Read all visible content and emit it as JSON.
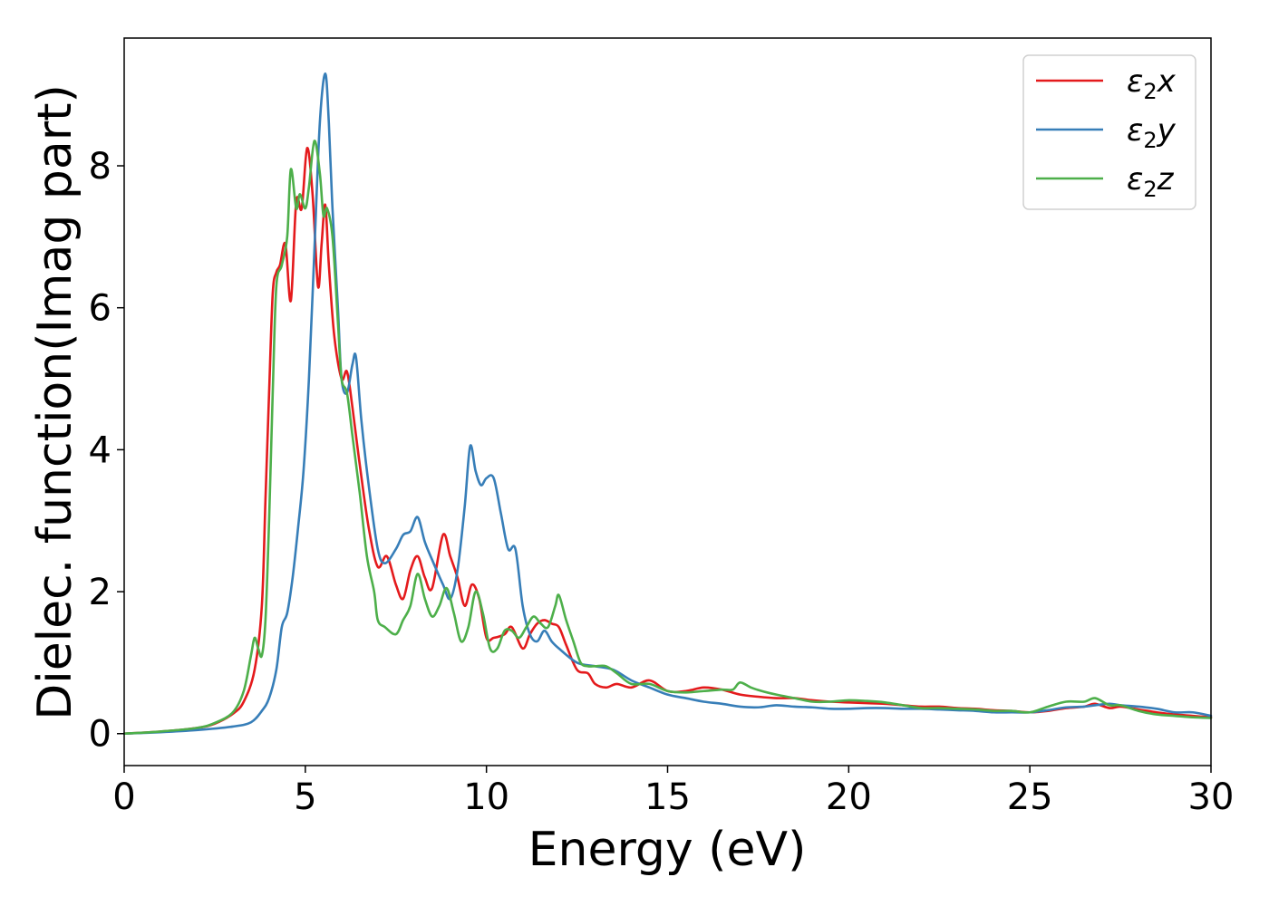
{
  "chart_data": {
    "type": "line",
    "title": "",
    "xlabel": "Energy (eV)",
    "ylabel": "Dielec. function(Imag part)",
    "xlim": [
      0,
      30
    ],
    "ylim": [
      -0.45,
      9.8
    ],
    "xticks": [
      0,
      5,
      10,
      15,
      20,
      25,
      30
    ],
    "yticks": [
      0,
      2,
      4,
      6,
      8
    ],
    "grid": false,
    "legend_position": "top-right",
    "series": [
      {
        "name": "ε2x",
        "legend": {
          "base": "ε",
          "sub": "2",
          "axis": "x"
        },
        "color": "#e41a1c",
        "x": [
          0,
          1,
          2,
          2.5,
          3,
          3.3,
          3.6,
          3.8,
          3.9,
          4.0,
          4.1,
          4.2,
          4.3,
          4.45,
          4.6,
          4.75,
          4.9,
          5.05,
          5.2,
          5.35,
          5.45,
          5.55,
          5.65,
          5.8,
          6.0,
          6.15,
          6.3,
          6.5,
          6.75,
          7.0,
          7.25,
          7.5,
          7.7,
          7.9,
          8.1,
          8.3,
          8.5,
          8.8,
          9.0,
          9.2,
          9.4,
          9.6,
          9.8,
          10.0,
          10.2,
          10.5,
          10.7,
          11.0,
          11.2,
          11.4,
          11.6,
          11.8,
          12.0,
          12.2,
          12.5,
          12.8,
          13.0,
          13.3,
          13.6,
          14.0,
          14.5,
          15.0,
          15.5,
          16.0,
          16.5,
          17.0,
          17.5,
          18.0,
          18.5,
          19.0,
          19.5,
          20.0,
          20.5,
          21.0,
          21.5,
          22.0,
          22.5,
          23.0,
          23.5,
          24.0,
          24.5,
          25.0,
          25.5,
          26.0,
          26.5,
          26.8,
          27.2,
          27.5,
          28.0,
          28.5,
          29.0,
          29.5,
          30.0
        ],
        "y": [
          0,
          0.03,
          0.08,
          0.14,
          0.28,
          0.45,
          0.9,
          1.8,
          3.3,
          4.8,
          6.2,
          6.5,
          6.6,
          6.9,
          6.1,
          7.5,
          7.4,
          8.25,
          7.6,
          6.3,
          6.9,
          7.45,
          6.6,
          5.6,
          5.0,
          5.1,
          4.6,
          3.8,
          2.9,
          2.35,
          2.5,
          2.1,
          1.9,
          2.3,
          2.5,
          2.2,
          2.05,
          2.8,
          2.5,
          2.2,
          1.8,
          2.1,
          1.9,
          1.35,
          1.35,
          1.4,
          1.5,
          1.2,
          1.4,
          1.55,
          1.6,
          1.55,
          1.5,
          1.25,
          0.9,
          0.85,
          0.7,
          0.65,
          0.7,
          0.65,
          0.75,
          0.6,
          0.6,
          0.65,
          0.62,
          0.55,
          0.52,
          0.5,
          0.5,
          0.47,
          0.45,
          0.44,
          0.43,
          0.42,
          0.4,
          0.38,
          0.38,
          0.36,
          0.35,
          0.33,
          0.32,
          0.3,
          0.32,
          0.36,
          0.38,
          0.42,
          0.36,
          0.38,
          0.34,
          0.3,
          0.27,
          0.25,
          0.23
        ]
      },
      {
        "name": "ε2y",
        "legend": {
          "base": "ε",
          "sub": "2",
          "axis": "y"
        },
        "color": "#377eb8",
        "x": [
          0,
          1,
          2,
          3,
          3.5,
          3.8,
          4.0,
          4.2,
          4.35,
          4.5,
          4.65,
          4.8,
          4.95,
          5.1,
          5.25,
          5.4,
          5.55,
          5.65,
          5.75,
          5.9,
          6.0,
          6.15,
          6.3,
          6.4,
          6.55,
          6.75,
          7.0,
          7.2,
          7.5,
          7.7,
          7.9,
          8.1,
          8.3,
          8.5,
          8.8,
          9.0,
          9.2,
          9.4,
          9.55,
          9.7,
          9.85,
          10.0,
          10.2,
          10.4,
          10.6,
          10.8,
          11.0,
          11.2,
          11.4,
          11.6,
          11.8,
          12.0,
          12.5,
          13.0,
          13.5,
          14.0,
          14.5,
          15.0,
          15.5,
          16.0,
          16.5,
          17.0,
          17.5,
          18.0,
          18.5,
          19.0,
          19.5,
          20.0,
          20.5,
          21.0,
          21.5,
          22.0,
          22.5,
          23.0,
          23.5,
          24.0,
          24.5,
          25.0,
          25.5,
          26.0,
          26.5,
          26.8,
          27.2,
          27.5,
          28.0,
          28.5,
          29.0,
          29.5,
          30.0
        ],
        "y": [
          0,
          0.02,
          0.05,
          0.1,
          0.16,
          0.32,
          0.5,
          0.9,
          1.5,
          1.7,
          2.2,
          2.9,
          3.7,
          5.0,
          6.8,
          8.6,
          9.3,
          8.6,
          7.4,
          6.0,
          5.0,
          4.8,
          5.2,
          5.3,
          4.4,
          3.5,
          2.6,
          2.4,
          2.6,
          2.8,
          2.85,
          3.05,
          2.7,
          2.45,
          2.1,
          1.9,
          2.3,
          3.2,
          4.05,
          3.7,
          3.5,
          3.6,
          3.6,
          3.1,
          2.6,
          2.6,
          1.8,
          1.4,
          1.3,
          1.45,
          1.3,
          1.2,
          1.0,
          0.95,
          0.9,
          0.75,
          0.65,
          0.55,
          0.5,
          0.45,
          0.42,
          0.38,
          0.37,
          0.4,
          0.38,
          0.37,
          0.35,
          0.35,
          0.36,
          0.36,
          0.35,
          0.35,
          0.34,
          0.33,
          0.32,
          0.3,
          0.3,
          0.3,
          0.33,
          0.37,
          0.38,
          0.4,
          0.42,
          0.4,
          0.38,
          0.35,
          0.3,
          0.3,
          0.25
        ]
      },
      {
        "name": "ε2z",
        "legend": {
          "base": "ε",
          "sub": "2",
          "axis": "z"
        },
        "color": "#4daf4a",
        "x": [
          0,
          1,
          2,
          2.5,
          3,
          3.3,
          3.5,
          3.6,
          3.7,
          3.8,
          3.9,
          4.0,
          4.1,
          4.2,
          4.35,
          4.5,
          4.6,
          4.75,
          4.85,
          5.0,
          5.1,
          5.25,
          5.4,
          5.5,
          5.6,
          5.75,
          5.9,
          6.0,
          6.15,
          6.3,
          6.5,
          6.7,
          6.9,
          7.0,
          7.2,
          7.5,
          7.7,
          7.9,
          8.1,
          8.3,
          8.5,
          8.7,
          8.9,
          9.1,
          9.3,
          9.5,
          9.7,
          9.9,
          10.1,
          10.3,
          10.5,
          10.7,
          10.9,
          11.1,
          11.3,
          11.5,
          11.7,
          11.9,
          12.0,
          12.2,
          12.4,
          12.6,
          12.8,
          13.0,
          13.3,
          13.6,
          14.0,
          14.5,
          15.0,
          15.5,
          16.0,
          16.5,
          16.8,
          17.0,
          17.3,
          17.6,
          18.0,
          18.5,
          19.0,
          19.5,
          20.0,
          20.5,
          21.0,
          21.5,
          22.0,
          22.5,
          23.0,
          23.5,
          24.0,
          24.5,
          25.0,
          25.5,
          26.0,
          26.5,
          26.8,
          27.2,
          27.5,
          28.0,
          28.5,
          29.0,
          29.5,
          30.0
        ],
        "y": [
          0,
          0.03,
          0.08,
          0.15,
          0.3,
          0.6,
          1.1,
          1.35,
          1.2,
          1.1,
          1.6,
          3.0,
          4.8,
          6.3,
          6.6,
          7.0,
          7.95,
          7.4,
          7.6,
          7.4,
          7.7,
          8.35,
          7.9,
          7.3,
          7.4,
          7.0,
          5.8,
          5.0,
          4.8,
          4.2,
          3.4,
          2.5,
          2.0,
          1.6,
          1.5,
          1.4,
          1.6,
          1.8,
          2.25,
          1.9,
          1.65,
          1.8,
          2.05,
          1.7,
          1.3,
          1.5,
          2.0,
          1.7,
          1.2,
          1.2,
          1.45,
          1.45,
          1.35,
          1.5,
          1.65,
          1.55,
          1.5,
          1.8,
          1.95,
          1.6,
          1.3,
          1.0,
          0.95,
          0.95,
          0.95,
          0.85,
          0.7,
          0.7,
          0.6,
          0.58,
          0.6,
          0.62,
          0.62,
          0.72,
          0.65,
          0.6,
          0.55,
          0.5,
          0.45,
          0.45,
          0.47,
          0.46,
          0.44,
          0.4,
          0.36,
          0.36,
          0.35,
          0.34,
          0.32,
          0.32,
          0.3,
          0.38,
          0.45,
          0.45,
          0.5,
          0.4,
          0.4,
          0.32,
          0.27,
          0.25,
          0.23,
          0.22
        ]
      }
    ]
  }
}
